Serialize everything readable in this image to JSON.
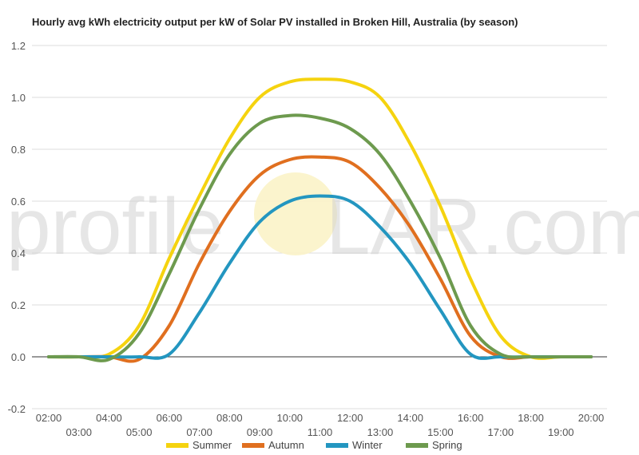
{
  "chart_data": {
    "type": "line",
    "title": "Hourly avg kWh electricity output per kW of Solar PV installed in Broken Hill, Australia (by season)",
    "watermark": [
      "profile",
      "LAR.com"
    ],
    "ylim": [
      -0.2,
      1.2
    ],
    "yticks": [
      "-0.2",
      "0.0",
      "0.2",
      "0.4",
      "0.6",
      "0.8",
      "1.0",
      "1.2"
    ],
    "ytick_values": [
      -0.2,
      0,
      0.2,
      0.4,
      0.6,
      0.8,
      1.0,
      1.2
    ],
    "x": [
      "02:00",
      "03:00",
      "04:00",
      "05:00",
      "06:00",
      "07:00",
      "08:00",
      "09:00",
      "10:00",
      "11:00",
      "12:00",
      "13:00",
      "14:00",
      "15:00",
      "16:00",
      "17:00",
      "18:00",
      "19:00",
      "20:00"
    ],
    "grid": true,
    "legend_position": "bottom",
    "series": [
      {
        "name": "Summer",
        "color": "#f5d30f",
        "values": [
          0,
          0,
          0.01,
          0.12,
          0.38,
          0.62,
          0.84,
          1.0,
          1.06,
          1.07,
          1.06,
          1.0,
          0.82,
          0.58,
          0.3,
          0.08,
          0.0,
          0,
          0
        ]
      },
      {
        "name": "Autumn",
        "color": "#e06f1f",
        "values": [
          0,
          0,
          0,
          -0.01,
          0.12,
          0.36,
          0.56,
          0.7,
          0.76,
          0.77,
          0.75,
          0.65,
          0.5,
          0.3,
          0.08,
          0.0,
          0,
          0,
          0
        ]
      },
      {
        "name": "Winter",
        "color": "#2396c0",
        "values": [
          0,
          0,
          0,
          0,
          0.01,
          0.17,
          0.36,
          0.52,
          0.6,
          0.62,
          0.6,
          0.5,
          0.36,
          0.18,
          0.01,
          0,
          0,
          0,
          0
        ]
      },
      {
        "name": "Spring",
        "color": "#6d9a4e",
        "values": [
          0,
          0,
          -0.01,
          0.09,
          0.32,
          0.57,
          0.78,
          0.9,
          0.93,
          0.92,
          0.88,
          0.78,
          0.6,
          0.38,
          0.12,
          0.01,
          0,
          0,
          0
        ]
      }
    ]
  }
}
